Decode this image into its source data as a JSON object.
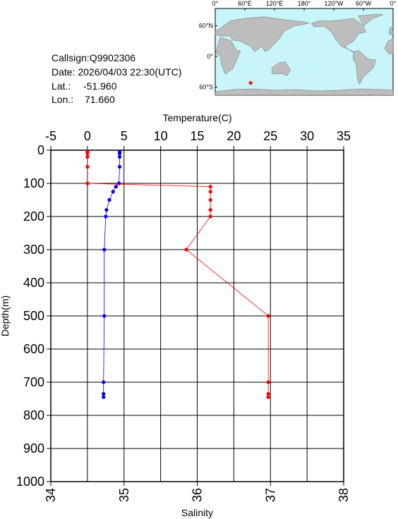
{
  "info": {
    "callsign": "Callsign:Q9902306",
    "date": "Date:  2026/04/03 22:30(UTC)",
    "lat": {
      "label": "Lat.:",
      "value": -51.96,
      "text": "-51.960"
    },
    "lon": {
      "label": "Lon.:",
      "value": 71.66,
      "text": "71.660"
    }
  },
  "map": {
    "xlim": [
      0,
      360
    ],
    "ylim": [
      -76,
      94
    ],
    "lon_ticks": [
      {
        "value": 0,
        "label": "0°"
      },
      {
        "value": 60,
        "label": "60°E"
      },
      {
        "value": 120,
        "label": "120°E"
      },
      {
        "value": 180,
        "label": "180°"
      },
      {
        "value": 240,
        "label": "120°W"
      },
      {
        "value": 300,
        "label": "60°W"
      },
      {
        "value": 360,
        "label": "0°"
      }
    ],
    "lat_ticks": [
      {
        "value": 60,
        "label": "60°N"
      },
      {
        "value": 0,
        "label": "0°"
      },
      {
        "value": -60,
        "label": "60°S"
      }
    ],
    "marker_color": "red"
  },
  "chart_data": {
    "type": "line",
    "ylabel": "Depth(m)",
    "y": [
      5,
      10,
      20,
      50,
      100,
      110,
      125,
      150,
      180,
      200,
      300,
      500,
      700,
      735,
      745
    ],
    "ylim": [
      0,
      1000
    ],
    "y_inverted": true,
    "yticks": [
      0,
      100,
      200,
      300,
      400,
      500,
      600,
      700,
      800,
      900,
      1000
    ],
    "grid": true,
    "series": [
      {
        "name": "Temperature(C)",
        "color": "blue",
        "axis": "top",
        "xlim": [
          -5,
          35
        ],
        "xticks": [
          -5,
          0,
          5,
          10,
          15,
          20,
          25,
          30,
          35
        ],
        "values": [
          4.4,
          4.4,
          4.4,
          4.4,
          4.3,
          3.9,
          3.5,
          3.0,
          2.6,
          2.5,
          2.3,
          2.3,
          2.2,
          2.2,
          2.2
        ]
      },
      {
        "name": "Salinity",
        "color": "red",
        "axis": "bottom",
        "xlim": [
          34,
          38
        ],
        "xticks": [
          34,
          35,
          36,
          37,
          38
        ],
        "values": [
          34.5,
          34.5,
          34.5,
          34.5,
          34.5,
          36.18,
          36.18,
          36.18,
          36.18,
          36.18,
          35.85,
          36.97,
          36.97,
          36.97,
          36.97
        ]
      }
    ]
  }
}
